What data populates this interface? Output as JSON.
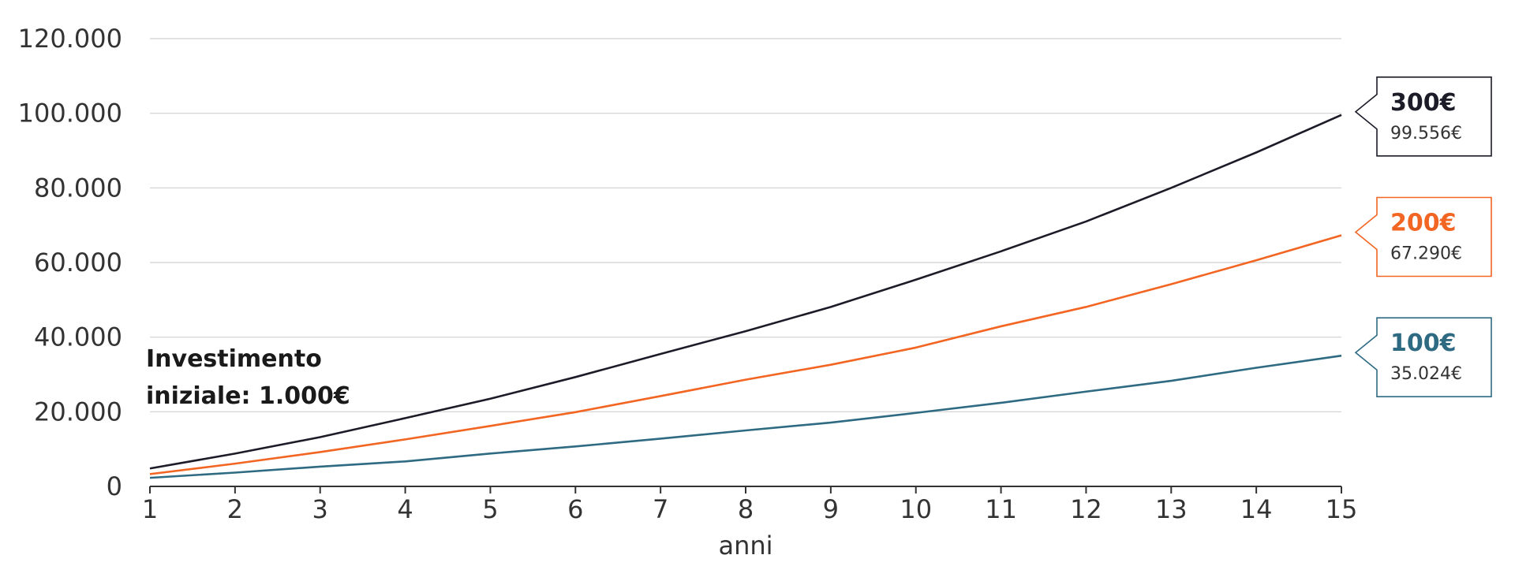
{
  "chart_data": {
    "type": "line",
    "xlabel": "anni",
    "ylabel": "",
    "x": [
      1,
      2,
      3,
      4,
      5,
      6,
      7,
      8,
      9,
      10,
      11,
      12,
      13,
      14,
      15
    ],
    "xlim": [
      1,
      15
    ],
    "ylim": [
      0,
      120000
    ],
    "yticks": [
      0,
      20000,
      40000,
      60000,
      80000,
      100000,
      120000
    ],
    "ytick_labels": [
      "0",
      "20.000",
      "40.000",
      "60.000",
      "80.000",
      "100.000",
      "120.000"
    ],
    "xtick_labels": [
      "1",
      "2",
      "3",
      "4",
      "5",
      "6",
      "7",
      "8",
      "9",
      "10",
      "11",
      "12",
      "13",
      "14",
      "15"
    ],
    "grid": "horizontal",
    "annotation": [
      "Investimento",
      "iniziale: 1.000€"
    ],
    "series": [
      {
        "name": "300€",
        "end_label": "99.556€",
        "color": "#1c1c28",
        "values": [
          4800,
          8800,
          13200,
          18300,
          23500,
          29300,
          35500,
          41600,
          48100,
          55400,
          63000,
          71000,
          80000,
          89500,
          99556
        ]
      },
      {
        "name": "200€",
        "end_label": "67.290€",
        "color": "#f26522",
        "values": [
          3300,
          6100,
          9200,
          12600,
          16200,
          19900,
          24200,
          28600,
          32600,
          37200,
          42900,
          48100,
          54200,
          60600,
          67290
        ]
      },
      {
        "name": "100€",
        "end_label": "35.024€",
        "color": "#2e6a82",
        "values": [
          2300,
          3700,
          5300,
          6700,
          8800,
          10700,
          12800,
          15000,
          17100,
          19700,
          22400,
          25400,
          28300,
          31800,
          35024
        ]
      }
    ]
  }
}
